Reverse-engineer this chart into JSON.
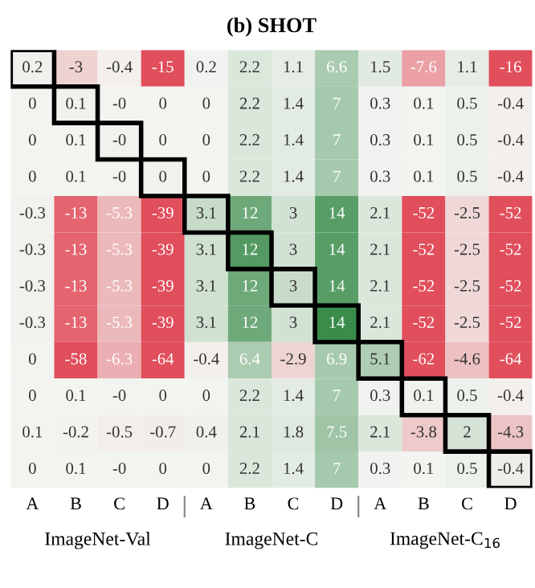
{
  "chart_data": {
    "type": "heatmap",
    "title": "(b) SHOT",
    "categories": [
      "A",
      "B",
      "C",
      "D",
      "A",
      "B",
      "C",
      "D",
      "A",
      "B",
      "C",
      "D"
    ],
    "y_categories": [
      null,
      null,
      null,
      null,
      null,
      null,
      null,
      null,
      null,
      null,
      null,
      null
    ],
    "annotations": [
      "ImageNet-Val",
      "ImageNet-C",
      "ImageNet-C$_{16}$"
    ],
    "cells": [
      [
        0.2,
        -3,
        -0.4,
        -15,
        0.2,
        2.2,
        1.1,
        6.6,
        1.5,
        -7.6,
        1.1,
        -16
      ],
      [
        0,
        0.1,
        0,
        0,
        0,
        2.2,
        1.4,
        7,
        0.3,
        0.1,
        0.5,
        -0.4
      ],
      [
        0,
        0.1,
        0,
        0,
        0,
        2.2,
        1.4,
        7,
        0.3,
        0.1,
        0.5,
        -0.4
      ],
      [
        0,
        0.1,
        0,
        0,
        0,
        2.2,
        1.4,
        7,
        0.3,
        0.1,
        0.5,
        -0.4
      ],
      [
        -0.3,
        -13,
        -5.3,
        -39,
        3.1,
        12,
        3,
        14,
        2.1,
        -52,
        -2.5,
        -52
      ],
      [
        -0.3,
        -13,
        -5.3,
        -39,
        3.1,
        12,
        3,
        14,
        2.1,
        -52,
        -2.5,
        -52
      ],
      [
        -0.3,
        -13,
        -5.3,
        -39,
        3.1,
        12,
        3,
        14,
        2.1,
        -52,
        -2.5,
        -52
      ],
      [
        -0.3,
        -13,
        -5.3,
        -39,
        3.1,
        12,
        3,
        14,
        2.1,
        -52,
        -2.5,
        -52
      ],
      [
        0,
        -58,
        -6.3,
        -64,
        -0.4,
        6.4,
        -2.9,
        6.9,
        5.1,
        -62,
        -4.6,
        -64
      ],
      [
        0,
        0.1,
        0,
        0,
        0,
        2.2,
        1.4,
        7,
        0.3,
        0.1,
        0.5,
        -0.4
      ],
      [
        0.1,
        -0.2,
        -0.5,
        -0.7,
        0.4,
        2.1,
        1.8,
        7.5,
        2.1,
        -3.8,
        2,
        -4.3
      ],
      [
        0,
        0.1,
        0,
        0,
        0,
        2.2,
        1.4,
        7,
        0.3,
        0.1,
        0.5,
        -0.4
      ]
    ],
    "cell_labels": [
      [
        "0.2",
        "-3",
        "-0.4",
        "-15",
        "0.2",
        "2.2",
        "1.1",
        "6.6",
        "1.5",
        "-7.6",
        "1.1",
        "-16"
      ],
      [
        "0",
        "0.1",
        "-0",
        "0",
        "0",
        "2.2",
        "1.4",
        "7",
        "0.3",
        "0.1",
        "0.5",
        "-0.4"
      ],
      [
        "0",
        "0.1",
        "-0",
        "0",
        "0",
        "2.2",
        "1.4",
        "7",
        "0.3",
        "0.1",
        "0.5",
        "-0.4"
      ],
      [
        "0",
        "0.1",
        "-0",
        "0",
        "0",
        "2.2",
        "1.4",
        "7",
        "0.3",
        "0.1",
        "0.5",
        "-0.4"
      ],
      [
        "-0.3",
        "-13",
        "-5.3",
        "-39",
        "3.1",
        "12",
        "3",
        "14",
        "2.1",
        "-52",
        "-2.5",
        "-52"
      ],
      [
        "-0.3",
        "-13",
        "-5.3",
        "-39",
        "3.1",
        "12",
        "3",
        "14",
        "2.1",
        "-52",
        "-2.5",
        "-52"
      ],
      [
        "-0.3",
        "-13",
        "-5.3",
        "-39",
        "3.1",
        "12",
        "3",
        "14",
        "2.1",
        "-52",
        "-2.5",
        "-52"
      ],
      [
        "-0.3",
        "-13",
        "-5.3",
        "-39",
        "3.1",
        "12",
        "3",
        "14",
        "2.1",
        "-52",
        "-2.5",
        "-52"
      ],
      [
        "0",
        "-58",
        "-6.3",
        "-64",
        "-0.4",
        "6.4",
        "-2.9",
        "6.9",
        "5.1",
        "-62",
        "-4.6",
        "-64"
      ],
      [
        "0",
        "0.1",
        "-0",
        "0",
        "0",
        "2.2",
        "1.4",
        "7",
        "0.3",
        "0.1",
        "0.5",
        "-0.4"
      ],
      [
        "0.1",
        "-0.2",
        "-0.5",
        "-0.7",
        "0.4",
        "2.1",
        "1.8",
        "7.5",
        "2.1",
        "-3.8",
        "2",
        "-4.3"
      ],
      [
        "0",
        "0.1",
        "-0",
        "0",
        "0",
        "2.2",
        "1.4",
        "7",
        "0.3",
        "0.1",
        "0.5",
        "-0.4"
      ]
    ]
  }
}
